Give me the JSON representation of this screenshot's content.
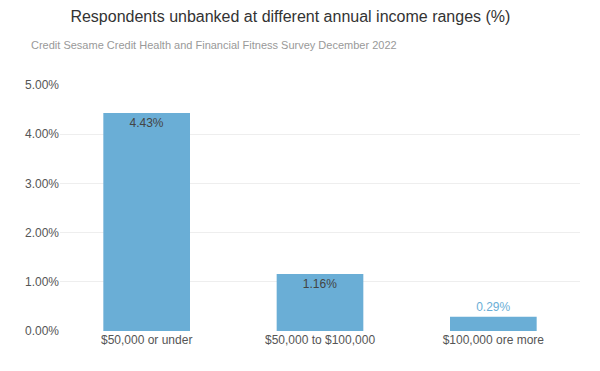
{
  "chart_data": {
    "type": "bar",
    "title": "Respondents unbanked at different annual income ranges (%)",
    "subtitle": "Credit Sesame Credit Health and Financial Fitness Survey December 2022",
    "categories": [
      "$50,000 or under",
      "$50,000 to $100,000",
      "$100,000 ore more"
    ],
    "values": [
      4.43,
      1.16,
      0.29
    ],
    "value_labels": [
      "4.43%",
      "1.16%",
      "0.29%"
    ],
    "data_labels": true,
    "color": "#6aaed6",
    "ylim": [
      0,
      5.0
    ],
    "yticks": [
      {
        "value": 0.0,
        "label": "0.00%"
      },
      {
        "value": 1.0,
        "label": "1.00%"
      },
      {
        "value": 2.0,
        "label": "2.00%"
      },
      {
        "value": 3.0,
        "label": "3.00%"
      },
      {
        "value": 4.0,
        "label": "4.00%"
      },
      {
        "value": 5.0,
        "label": "5.00%"
      }
    ],
    "grid": true
  }
}
